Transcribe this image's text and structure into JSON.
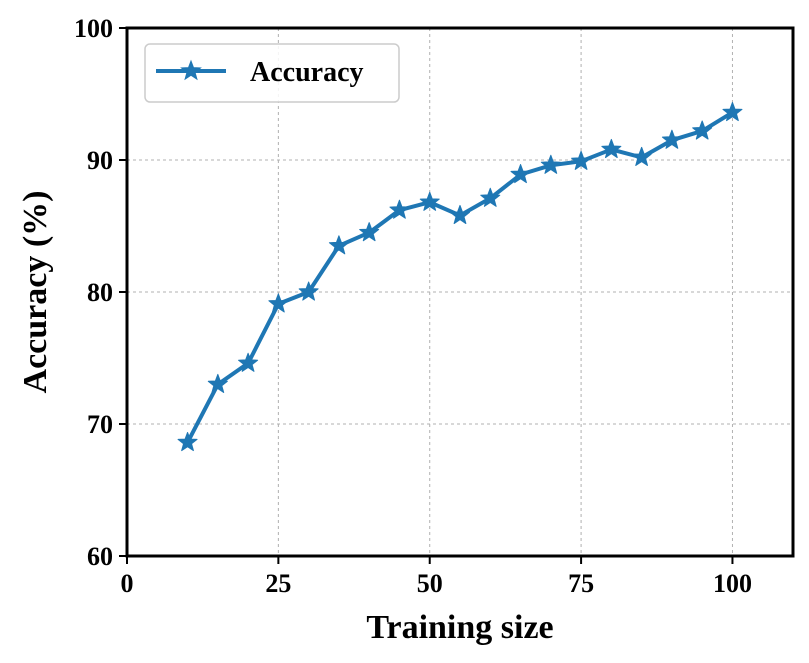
{
  "chart_data": {
    "type": "line",
    "title": "",
    "xlabel": "Training size",
    "ylabel": "Accuracy (%)",
    "xlim": [
      0,
      110
    ],
    "ylim": [
      60,
      100
    ],
    "xticks": [
      0,
      25,
      50,
      75,
      100
    ],
    "yticks": [
      60,
      70,
      80,
      90,
      100
    ],
    "grid": true,
    "legend_position": "top-left",
    "series": [
      {
        "name": "Accuracy",
        "color": "#1f77b4",
        "marker": "star",
        "x": [
          10,
          15,
          20,
          25,
          30,
          35,
          40,
          45,
          50,
          55,
          60,
          65,
          70,
          75,
          80,
          85,
          90,
          95,
          100
        ],
        "y": [
          68.6,
          73.0,
          74.6,
          79.1,
          80.0,
          83.5,
          84.5,
          86.2,
          86.8,
          85.8,
          87.1,
          88.9,
          89.6,
          89.9,
          90.8,
          90.2,
          91.5,
          92.2,
          93.6
        ]
      }
    ]
  }
}
